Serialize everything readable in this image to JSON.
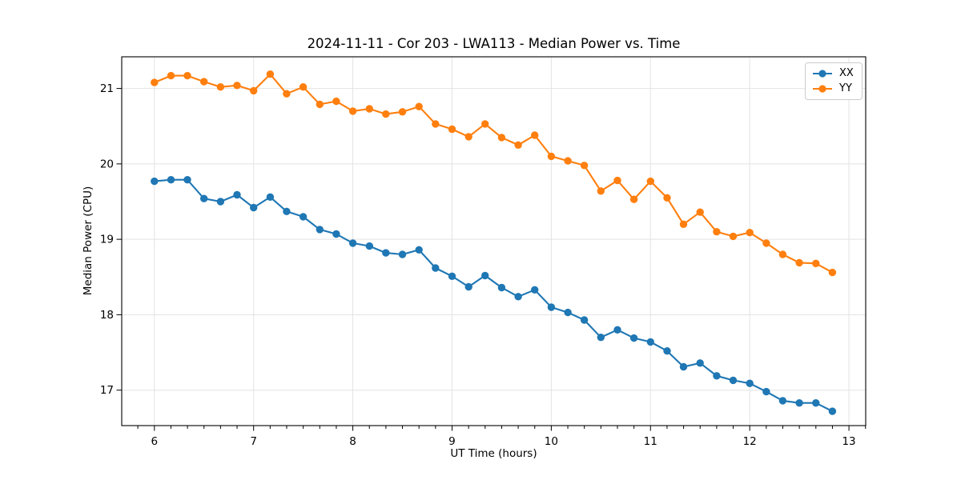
{
  "chart_data": {
    "type": "line",
    "title": "2024-11-11 - Cor 203 - LWA113 - Median Power vs. Time",
    "xlabel": "UT Time (hours)",
    "ylabel": "Median Power (CPU)",
    "xlim": [
      5.671,
      13.169
    ],
    "ylim": [
      16.53,
      21.42
    ],
    "xticks": [
      6,
      7,
      8,
      9,
      10,
      11,
      12,
      13
    ],
    "yticks": [
      17,
      18,
      19,
      20,
      21
    ],
    "x_minor_tick_step": 0.16667,
    "grid": true,
    "grid_color": "#e3e3e3",
    "legend_position": "upper right",
    "x": [
      6.0,
      6.167,
      6.333,
      6.5,
      6.667,
      6.833,
      7.0,
      7.167,
      7.333,
      7.5,
      7.667,
      7.833,
      8.0,
      8.167,
      8.333,
      8.5,
      8.667,
      8.833,
      9.0,
      9.167,
      9.333,
      9.5,
      9.667,
      9.833,
      10.0,
      10.167,
      10.333,
      10.5,
      10.667,
      10.833,
      11.0,
      11.167,
      11.333,
      11.5,
      11.667,
      11.833,
      12.0,
      12.167,
      12.333,
      12.5,
      12.667,
      12.833
    ],
    "series": [
      {
        "name": "XX",
        "color": "#1f77b4",
        "marker": "circle",
        "values": [
          19.77,
          19.79,
          19.79,
          19.54,
          19.5,
          19.59,
          19.42,
          19.56,
          19.37,
          19.3,
          19.13,
          19.07,
          18.95,
          18.91,
          18.82,
          18.8,
          18.86,
          18.62,
          18.51,
          18.37,
          18.52,
          18.36,
          18.24,
          18.33,
          18.1,
          18.03,
          17.93,
          17.7,
          17.8,
          17.69,
          17.64,
          17.52,
          17.31,
          17.36,
          17.19,
          17.13,
          17.09,
          16.98,
          16.86,
          16.83,
          16.83,
          16.72
        ]
      },
      {
        "name": "YY",
        "color": "#ff7f0e",
        "marker": "circle",
        "values": [
          21.08,
          21.17,
          21.17,
          21.09,
          21.02,
          21.04,
          20.97,
          21.19,
          20.93,
          21.02,
          20.79,
          20.83,
          20.7,
          20.73,
          20.66,
          20.69,
          20.76,
          20.53,
          20.46,
          20.36,
          20.53,
          20.35,
          20.25,
          20.38,
          20.1,
          20.04,
          19.98,
          19.64,
          19.78,
          19.53,
          19.77,
          19.55,
          19.2,
          19.36,
          19.1,
          19.04,
          19.09,
          18.95,
          18.8,
          18.69,
          18.68,
          18.56
        ]
      }
    ]
  }
}
